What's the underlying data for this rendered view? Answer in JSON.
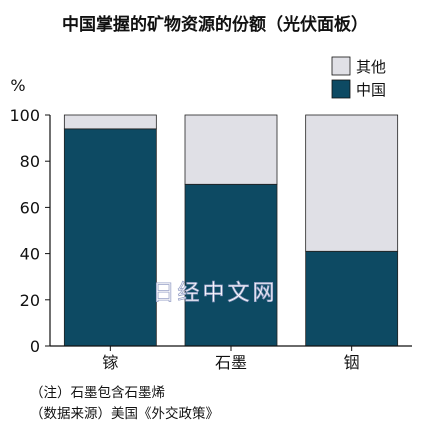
{
  "chart_data": {
    "type": "bar",
    "stacked": true,
    "title": "中国掌握的矿物资源的份额（光伏面板）",
    "ylabel": "%",
    "ylim": [
      0,
      100
    ],
    "yticks": [
      "0",
      "20",
      "40",
      "60",
      "80",
      "100"
    ],
    "categories": [
      "镓",
      "石墨",
      "铟"
    ],
    "series": [
      {
        "name": "中国",
        "values": [
          94,
          70,
          41
        ],
        "color": "#0d4a63"
      },
      {
        "name": "其他",
        "values": [
          6,
          30,
          59
        ],
        "color": "#e0e0e6"
      }
    ],
    "legend": {
      "position": "top-right",
      "items": [
        "其他",
        "中国"
      ]
    },
    "grid": false
  },
  "notes": {
    "note1": "（注）石墨包含石墨烯",
    "note2": "（数据来源）美国《外交政策》"
  },
  "watermark": "日经中文网"
}
